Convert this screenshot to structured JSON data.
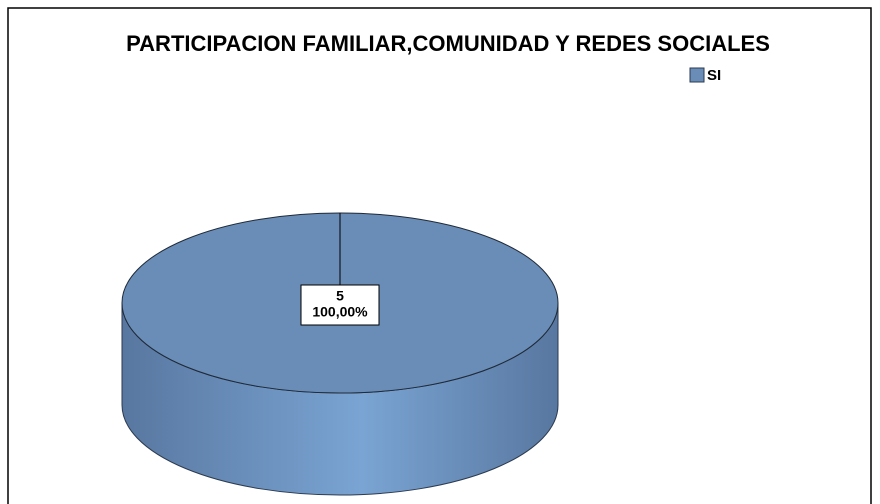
{
  "chart_data": {
    "type": "pie",
    "title": "PARTICIPACION FAMILIAR,COMUNIDAD Y REDES SOCIALES",
    "categories": [
      "SI"
    ],
    "values": [
      5
    ],
    "percentages": [
      100
    ],
    "percentage_labels": [
      "100,00%"
    ],
    "colors": [
      "#6a8db7"
    ],
    "legend": "top-right"
  }
}
